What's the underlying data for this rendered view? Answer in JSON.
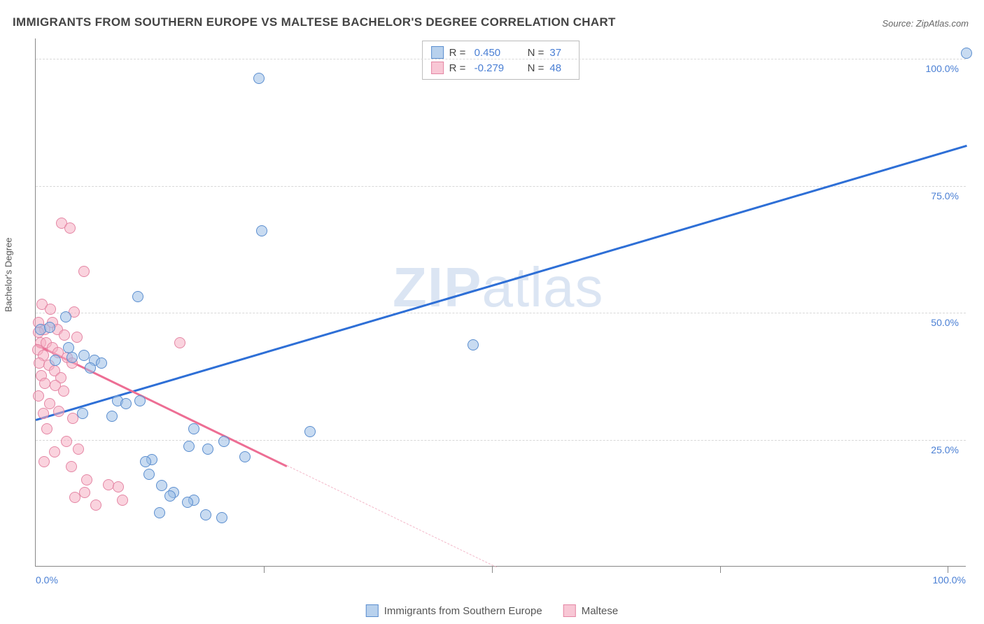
{
  "title": "IMMIGRANTS FROM SOUTHERN EUROPE VS MALTESE BACHELOR'S DEGREE CORRELATION CHART",
  "source": "Source: ZipAtlas.com",
  "watermark": "ZIPatlas",
  "y_axis_label": "Bachelor's Degree",
  "chart": {
    "type": "scatter",
    "xlim": [
      0,
      100
    ],
    "ylim": [
      0,
      104
    ],
    "xtick_left": "0.0%",
    "xtick_right": "100.0%",
    "yticks": [
      {
        "v": 25,
        "label": "25.0%"
      },
      {
        "v": 50,
        "label": "50.0%"
      },
      {
        "v": 75,
        "label": "75.0%"
      },
      {
        "v": 100,
        "label": "100.0%"
      }
    ],
    "x_inner_ticks": [
      24.5,
      49.0,
      73.5,
      98.0
    ],
    "grid_color": "#d8d8d8",
    "background_color": "#ffffff",
    "marker_size": 16,
    "series": [
      {
        "name": "Immigrants from Southern Europe",
        "color_fill": "rgba(154,190,230,0.55)",
        "color_stroke": "#5b8ecf",
        "trend_color": "#2e6fd6",
        "R": "0.450",
        "N": "37",
        "trend": {
          "x1": 0,
          "y1": 29,
          "x2": 100,
          "y2": 83
        },
        "points": [
          [
            100,
            101
          ],
          [
            24,
            96
          ],
          [
            24.3,
            66
          ],
          [
            47,
            43.5
          ],
          [
            11,
            53
          ],
          [
            3.2,
            49
          ],
          [
            0.5,
            46.5
          ],
          [
            1.5,
            47
          ],
          [
            3.5,
            43
          ],
          [
            2.1,
            40.5
          ],
          [
            3.9,
            41
          ],
          [
            5.2,
            41.5
          ],
          [
            6.3,
            40.5
          ],
          [
            7.1,
            40
          ],
          [
            5.9,
            39
          ],
          [
            8.8,
            32.5
          ],
          [
            9.7,
            32
          ],
          [
            11.2,
            32.5
          ],
          [
            8.2,
            29.5
          ],
          [
            5.0,
            30
          ],
          [
            16.5,
            23.5
          ],
          [
            18.5,
            23
          ],
          [
            20.2,
            24.5
          ],
          [
            17,
            27
          ],
          [
            29.5,
            26.5
          ],
          [
            22.5,
            21.5
          ],
          [
            12.5,
            21
          ],
          [
            11.8,
            20.5
          ],
          [
            12.2,
            18
          ],
          [
            13.5,
            15.8
          ],
          [
            14.8,
            14.5
          ],
          [
            14.4,
            13.8
          ],
          [
            17,
            13
          ],
          [
            16.3,
            12.5
          ],
          [
            18.3,
            10
          ],
          [
            20,
            9.5
          ],
          [
            13.3,
            10.5
          ]
        ]
      },
      {
        "name": "Maltese",
        "color_fill": "rgba(245,175,195,0.55)",
        "color_stroke": "#e486a4",
        "trend_color": "#ed6e94",
        "R": "-0.279",
        "N": "48",
        "trend_solid": {
          "x1": 0,
          "y1": 44,
          "x2": 27,
          "y2": 20
        },
        "trend_dash": {
          "x1": 27,
          "y1": 20,
          "x2": 49.5,
          "y2": 0
        },
        "points": [
          [
            2.8,
            67.5
          ],
          [
            3.7,
            66.5
          ],
          [
            5.2,
            58
          ],
          [
            0.7,
            51.5
          ],
          [
            1.6,
            50.5
          ],
          [
            4.1,
            50
          ],
          [
            0.3,
            48
          ],
          [
            1.8,
            48
          ],
          [
            1.0,
            46.5
          ],
          [
            0.3,
            46
          ],
          [
            2.3,
            46.5
          ],
          [
            3.1,
            45.5
          ],
          [
            4.4,
            45
          ],
          [
            0.5,
            44
          ],
          [
            1.1,
            44
          ],
          [
            1.8,
            43
          ],
          [
            0.2,
            42.5
          ],
          [
            2.4,
            42
          ],
          [
            0.8,
            41.5
          ],
          [
            3.4,
            41
          ],
          [
            3.9,
            40
          ],
          [
            0.4,
            40
          ],
          [
            1.4,
            39.5
          ],
          [
            2.0,
            38.5
          ],
          [
            0.6,
            37.5
          ],
          [
            2.7,
            37
          ],
          [
            1.0,
            36
          ],
          [
            2.1,
            35.5
          ],
          [
            3.0,
            34.5
          ],
          [
            0.3,
            33.5
          ],
          [
            1.5,
            32
          ],
          [
            2.5,
            30.5
          ],
          [
            0.8,
            30
          ],
          [
            4.0,
            29
          ],
          [
            1.2,
            27
          ],
          [
            15.5,
            44
          ],
          [
            3.3,
            24.5
          ],
          [
            4.6,
            23
          ],
          [
            2.0,
            22.5
          ],
          [
            0.9,
            20.5
          ],
          [
            3.8,
            19.5
          ],
          [
            5.5,
            17
          ],
          [
            7.8,
            16
          ],
          [
            8.9,
            15.5
          ],
          [
            5.3,
            14.5
          ],
          [
            4.2,
            13.5
          ],
          [
            9.3,
            13
          ],
          [
            6.5,
            12
          ]
        ]
      }
    ]
  },
  "legend_bottom": [
    {
      "label": "Immigrants from Southern Europe",
      "swatch": "blue"
    },
    {
      "label": "Maltese",
      "swatch": "pink"
    }
  ]
}
